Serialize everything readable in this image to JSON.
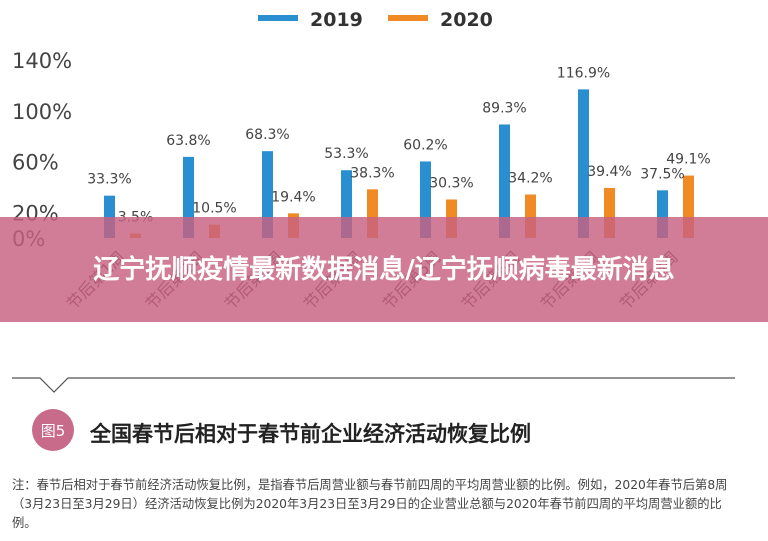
{
  "chart_data": {
    "type": "bar",
    "categories": [
      "节后第1周",
      "节后第2周",
      "节后第3周",
      "节后第4周",
      "节后第5周",
      "节后第6周",
      "节后第7周",
      "节后第8周"
    ],
    "series": [
      {
        "name": "2019",
        "color": "#2a8fd0",
        "values": [
          33.3,
          63.8,
          68.3,
          53.3,
          60.2,
          89.3,
          116.9,
          37.5
        ]
      },
      {
        "name": "2020",
        "color": "#f08a24",
        "values": [
          3.5,
          10.5,
          19.4,
          38.3,
          30.3,
          34.2,
          39.4,
          49.1
        ]
      }
    ],
    "data_labels": {
      "2019": [
        "33.3%",
        "63.8%",
        "68.3%",
        "53.3%",
        "60.2%",
        "89.3%",
        "116.9%",
        "37.5%"
      ],
      "2020": [
        "3.5%",
        "10.5%",
        "19.4%",
        "38.3%",
        "30.3%",
        "34.2%",
        "39.4%",
        "49.1%"
      ]
    },
    "y_ticks": [
      "0%",
      "20%",
      "60%",
      "100%",
      "140%"
    ],
    "y_tick_values": [
      0,
      20,
      60,
      100,
      140
    ],
    "ylim": [
      0,
      140
    ],
    "legend_position": "top-center",
    "grid": false
  },
  "banner": {
    "text": "辽宁抚顺疫情最新数据消息/辽宁抚顺病毒最新消息"
  },
  "figure": {
    "badge": "图5",
    "title": "全国春节后相对于春节前企业经济活动恢复比例"
  },
  "note": "注：春节后相对于春节前经济活动恢复比例，是指春节后周营业额与春节前四周的平均周营业额的比例。例如，2020年春节后第8周（3月23日至3月29日）经济活动恢复比例为2020年3月23日至3月29日的企业营业总额与2020年春节前四周的平均周营业额的比例。"
}
